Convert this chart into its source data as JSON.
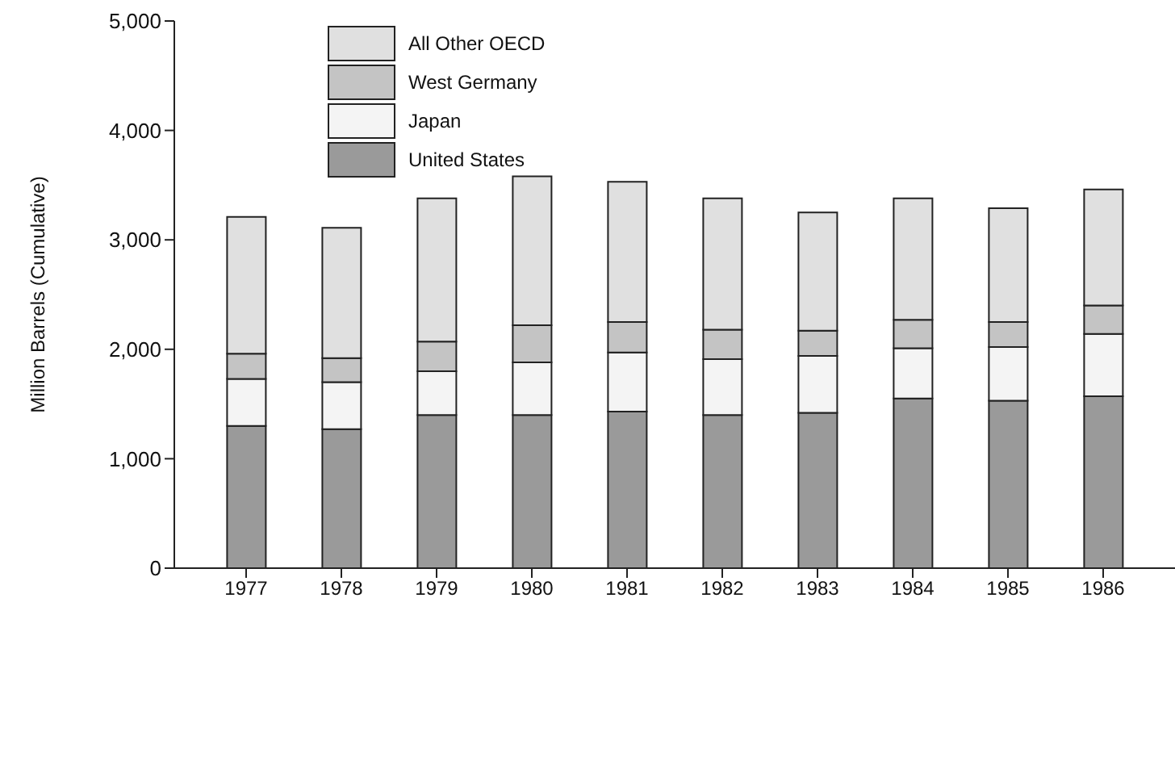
{
  "chart_data": {
    "type": "bar",
    "stacked": true,
    "ylabel": "Million Barrels (Cumulative)",
    "categories": [
      "1977",
      "1978",
      "1979",
      "1980",
      "1981",
      "1982",
      "1983",
      "1984",
      "1985",
      "1986"
    ],
    "series": [
      {
        "name": "United States",
        "color": "#9a9a9a",
        "values": [
          1300,
          1270,
          1400,
          1400,
          1430,
          1400,
          1420,
          1550,
          1530,
          1570
        ]
      },
      {
        "name": "Japan",
        "color": "#f4f4f4",
        "values": [
          430,
          430,
          400,
          480,
          540,
          510,
          520,
          460,
          490,
          570
        ]
      },
      {
        "name": "West Germany",
        "color": "#c4c4c4",
        "values": [
          230,
          220,
          270,
          340,
          280,
          270,
          230,
          260,
          230,
          260
        ]
      },
      {
        "name": "All Other OECD",
        "color": "#e0e0e0",
        "values": [
          1250,
          1190,
          1310,
          1360,
          1280,
          1200,
          1080,
          1110,
          1040,
          1060
        ]
      }
    ],
    "ylim": [
      0,
      5000
    ],
    "yticks": [
      0,
      {
        "value": 1000,
        "label": "1,000"
      },
      {
        "value": 2000,
        "label": "2,000"
      },
      {
        "value": 3000,
        "label": "3,000"
      },
      {
        "value": 4000,
        "label": "4,000"
      },
      {
        "value": 5000,
        "label": "5,000"
      }
    ],
    "grid": false,
    "legend": "top left"
  }
}
